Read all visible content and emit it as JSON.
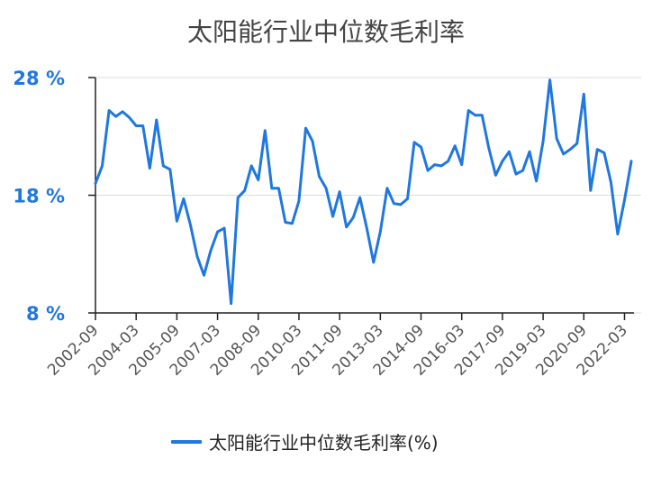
{
  "title": "太阳能行业中位数毛利率",
  "legend": {
    "label": "太阳能行业中位数毛利率(%)",
    "color": "#1f77e0"
  },
  "chart_data": {
    "type": "line",
    "title": "太阳能行业中位数毛利率",
    "ylim": [
      8,
      28
    ],
    "y_ticks": [
      8,
      18,
      28
    ],
    "y_tick_labels": [
      "8 %",
      "18 %",
      "28 %"
    ],
    "x_tick_labels": [
      "2002-09",
      "2004-03",
      "2005-09",
      "2007-03",
      "2008-09",
      "2010-03",
      "2011-09",
      "2013-03",
      "2014-09",
      "2016-03",
      "2017-09",
      "2019-03",
      "2020-09",
      "2022-03"
    ],
    "x_tick_indices": [
      0,
      6,
      12,
      18,
      24,
      30,
      36,
      42,
      48,
      54,
      60,
      66,
      72,
      78
    ],
    "grid": true,
    "legend_position": "bottom",
    "series": [
      {
        "name": "太阳能行业中位数毛利率(%)",
        "color": "#1f77e0",
        "values": [
          19,
          20.5,
          25.2,
          24.7,
          25.1,
          24.6,
          23.9,
          23.9,
          20.3,
          24.4,
          20.5,
          20.2,
          15.8,
          17.7,
          15.5,
          12.8,
          11.2,
          13.3,
          14.9,
          15.2,
          8.8,
          17.8,
          18.4,
          20.5,
          19.3,
          23.5,
          18.6,
          18.6,
          15.7,
          15.6,
          17.5,
          23.7,
          22.6,
          19.6,
          18.6,
          16.2,
          18.3,
          15.3,
          16.1,
          17.8,
          15.2,
          12.3,
          14.9,
          18.6,
          17.3,
          17.2,
          17.7,
          22.5,
          22.1,
          20.1,
          20.6,
          20.5,
          20.9,
          22.2,
          20.6,
          25.2,
          24.8,
          24.8,
          22.0,
          19.7,
          20.9,
          21.7,
          19.8,
          20.1,
          21.7,
          19.2,
          22.6,
          27.8,
          22.8,
          21.5,
          21.9,
          22.4,
          26.6,
          18.4,
          21.9,
          21.6,
          19.1,
          14.7,
          17.6,
          20.9
        ]
      }
    ]
  }
}
